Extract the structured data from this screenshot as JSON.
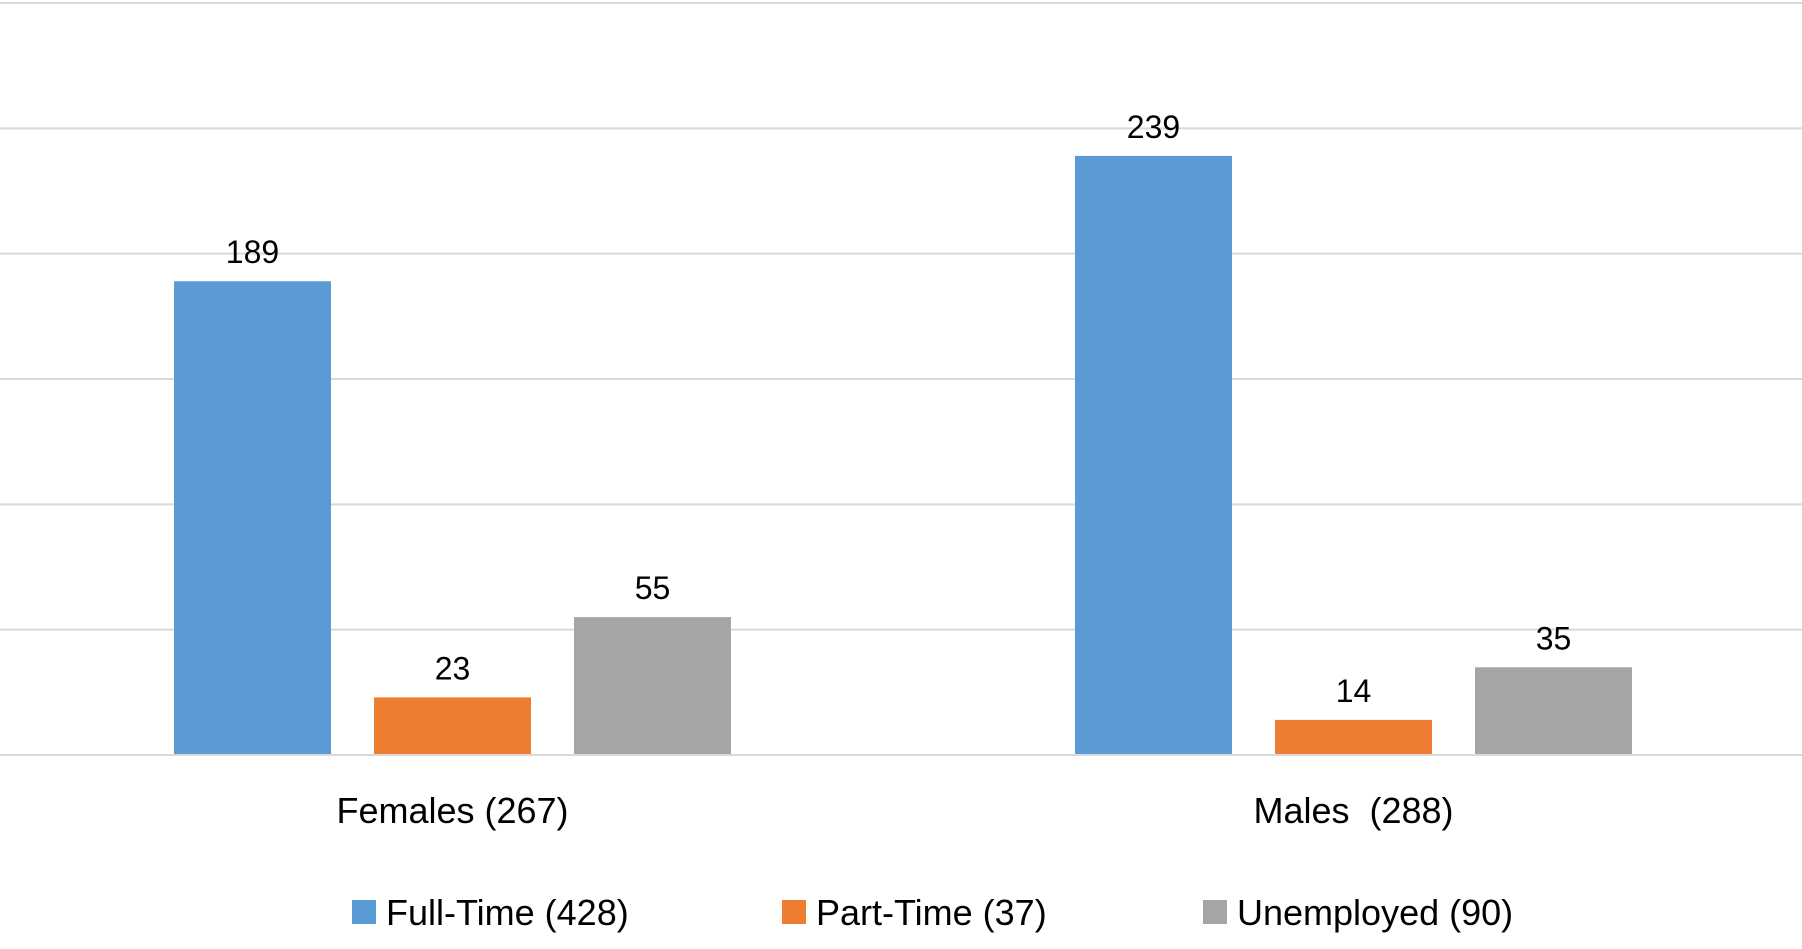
{
  "chart_data": {
    "type": "bar",
    "title": "",
    "xlabel": "",
    "ylabel": "",
    "categories": [
      "Females (267)",
      "Males  (288)"
    ],
    "series": [
      {
        "name": "Full-Time (428)",
        "values": [
          189,
          239
        ],
        "color": "#5b9bd5"
      },
      {
        "name": "Part-Time (37)",
        "values": [
          23,
          14
        ],
        "color": "#ed7d31"
      },
      {
        "name": "Unemployed (90)",
        "values": [
          55,
          35
        ],
        "color": "#a5a5a5"
      }
    ],
    "ylim": [
      0,
      300
    ],
    "y_gridline_step": 50,
    "grid": true,
    "data_labels": true,
    "legend": "bottom"
  }
}
